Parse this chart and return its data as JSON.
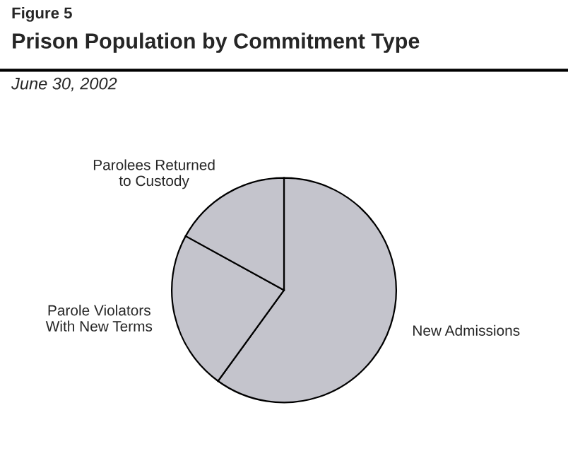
{
  "chart_data": {
    "type": "pie",
    "title": "Prison Population by Commitment Type",
    "subtitle": "June 30, 2002",
    "annotations": [
      "Figure 5"
    ],
    "categories": [
      "New Admissions",
      "Parole Violators\nWith New Terms",
      "Parolees Returned\nto Custody"
    ],
    "values": [
      60,
      23,
      17
    ],
    "colors": [
      "#c4c4cc",
      "#c4c4cc",
      "#c4c4cc"
    ]
  }
}
